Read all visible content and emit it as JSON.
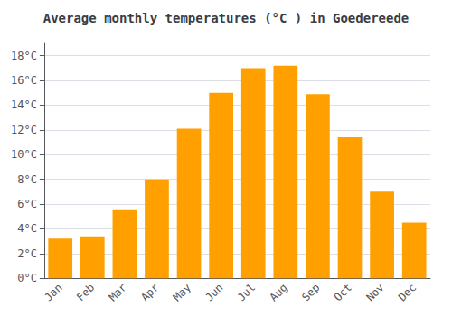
{
  "chart_data": {
    "type": "bar",
    "title": "Average monthly temperatures (°C ) in Goedereede",
    "categories": [
      "Jan",
      "Feb",
      "Mar",
      "Apr",
      "May",
      "Jun",
      "Jul",
      "Aug",
      "Sep",
      "Oct",
      "Nov",
      "Dec"
    ],
    "values": [
      3.2,
      3.4,
      5.5,
      8.0,
      12.1,
      15.0,
      17.0,
      17.2,
      14.9,
      11.4,
      7.0,
      4.5
    ],
    "color": "#FFA000",
    "ylim": [
      0,
      19
    ],
    "yticks": [
      {
        "value": 0,
        "label": "0°C"
      },
      {
        "value": 2,
        "label": "2°C"
      },
      {
        "value": 4,
        "label": "4°C"
      },
      {
        "value": 6,
        "label": "6°C"
      },
      {
        "value": 8,
        "label": "8°C"
      },
      {
        "value": 10,
        "label": "10°C"
      },
      {
        "value": 12,
        "label": "12°C"
      },
      {
        "value": 14,
        "label": "14°C"
      },
      {
        "value": 16,
        "label": "16°C"
      },
      {
        "value": 18,
        "label": "18°C"
      }
    ],
    "grid": true
  }
}
